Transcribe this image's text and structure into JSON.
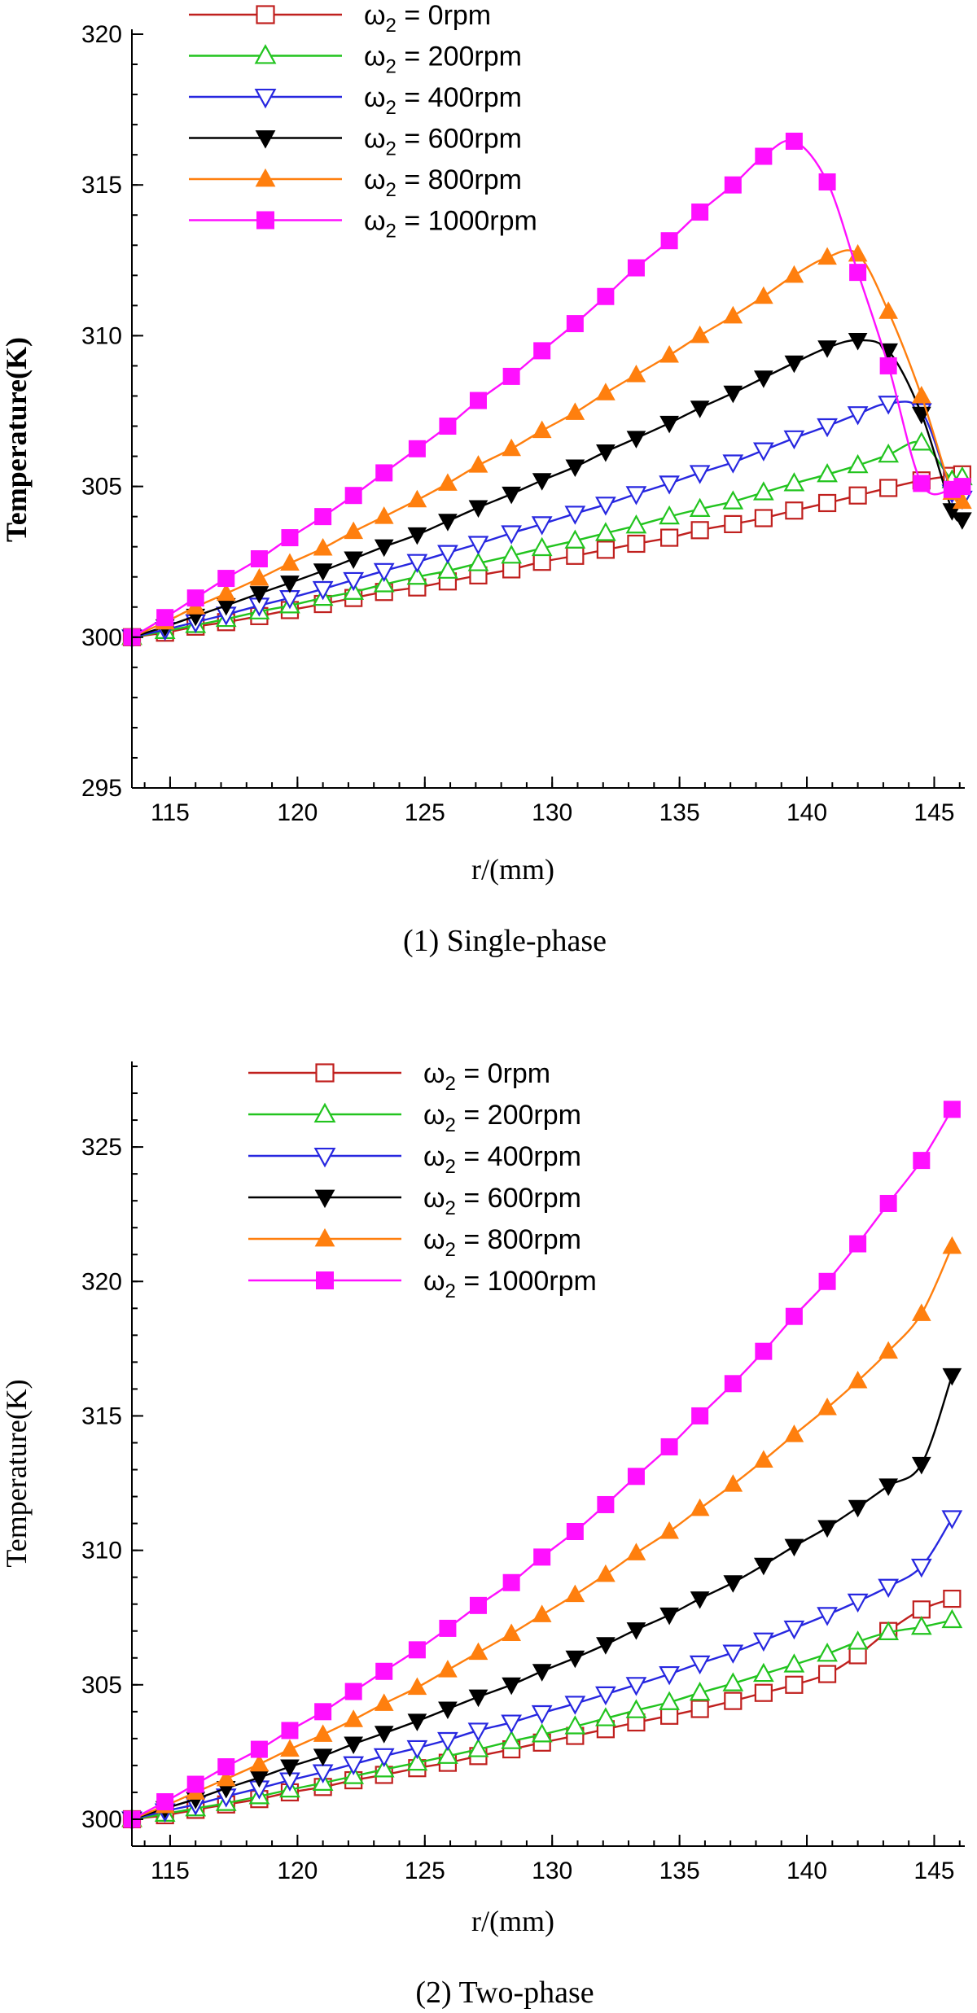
{
  "chart_data": [
    {
      "type": "line",
      "caption": "(1) Single-phase",
      "xlabel": "r/(mm)",
      "ylabel": "Temperature(K)",
      "xlim": [
        113.5,
        146.2
      ],
      "ylim": [
        295,
        320
      ],
      "xticks": [
        115,
        120,
        125,
        130,
        135,
        140,
        145
      ],
      "yticks": [
        295,
        300,
        305,
        310,
        315,
        320
      ],
      "grid": false,
      "legend_position": "top-left",
      "series": [
        {
          "name": "ω2 = 0rpm",
          "marker": "square-open",
          "color": "#c0201e",
          "x": [
            113.5,
            114.8,
            116.0,
            117.2,
            118.5,
            119.7,
            121.0,
            122.2,
            123.4,
            124.7,
            125.9,
            127.1,
            128.4,
            129.6,
            130.9,
            132.1,
            133.3,
            134.6,
            135.8,
            137.1,
            138.3,
            139.5,
            140.8,
            142.0,
            143.2,
            144.5,
            145.7,
            146.1
          ],
          "y": [
            300.0,
            300.15,
            300.35,
            300.5,
            300.7,
            300.9,
            301.1,
            301.3,
            301.5,
            301.65,
            301.85,
            302.05,
            302.25,
            302.5,
            302.7,
            302.9,
            303.1,
            303.3,
            303.55,
            303.75,
            303.95,
            304.2,
            304.45,
            304.7,
            304.95,
            305.2,
            305.35,
            305.4
          ]
        },
        {
          "name": "ω2 = 200rpm",
          "marker": "triangle-up-open",
          "color": "#22c41f",
          "x": [
            113.5,
            114.8,
            116.0,
            117.2,
            118.5,
            119.7,
            121.0,
            122.2,
            123.4,
            124.7,
            125.9,
            127.1,
            128.4,
            129.6,
            130.9,
            132.1,
            133.3,
            134.6,
            135.8,
            137.1,
            138.3,
            139.5,
            140.8,
            142.0,
            143.2,
            144.5,
            145.7,
            146.1
          ],
          "y": [
            300.0,
            300.2,
            300.4,
            300.6,
            300.85,
            301.05,
            301.3,
            301.5,
            301.75,
            302.0,
            302.2,
            302.45,
            302.7,
            302.95,
            303.2,
            303.45,
            303.7,
            304.0,
            304.25,
            304.5,
            304.8,
            305.1,
            305.4,
            305.7,
            306.05,
            306.45,
            305.2,
            305.3
          ]
        },
        {
          "name": "ω2 = 400rpm",
          "marker": "triangle-down-open",
          "color": "#2727e0",
          "x": [
            113.5,
            114.8,
            116.0,
            117.2,
            118.5,
            119.7,
            121.0,
            122.2,
            123.4,
            124.7,
            125.9,
            127.1,
            128.4,
            129.6,
            130.9,
            132.1,
            133.3,
            134.6,
            135.8,
            137.1,
            138.3,
            139.5,
            140.8,
            142.0,
            143.2,
            144.5,
            145.7,
            146.1
          ],
          "y": [
            300.0,
            300.25,
            300.5,
            300.75,
            301.05,
            301.3,
            301.6,
            301.9,
            302.2,
            302.5,
            302.8,
            303.1,
            303.45,
            303.75,
            304.1,
            304.4,
            304.75,
            305.1,
            305.45,
            305.8,
            306.2,
            306.6,
            307.0,
            307.4,
            307.75,
            307.5,
            304.8,
            304.6
          ]
        },
        {
          "name": "ω2 = 600rpm",
          "marker": "triangle-down-filled",
          "color": "#000000",
          "x": [
            113.5,
            114.8,
            116.0,
            117.2,
            118.5,
            119.7,
            121.0,
            122.2,
            123.4,
            124.7,
            125.9,
            127.1,
            128.4,
            129.6,
            130.9,
            132.1,
            133.3,
            134.6,
            135.8,
            137.1,
            138.3,
            139.5,
            140.8,
            142.0,
            143.2,
            144.5,
            145.7,
            146.1
          ],
          "y": [
            300.0,
            300.35,
            300.7,
            301.05,
            301.45,
            301.8,
            302.2,
            302.6,
            303.0,
            303.4,
            303.85,
            304.3,
            304.75,
            305.2,
            305.65,
            306.15,
            306.6,
            307.1,
            307.6,
            308.1,
            308.6,
            309.1,
            309.6,
            309.85,
            309.5,
            307.4,
            304.2,
            303.9
          ]
        },
        {
          "name": "ω2 = 800rpm",
          "marker": "triangle-up-filled",
          "color": "#ff7f0e",
          "x": [
            113.5,
            114.8,
            116.0,
            117.2,
            118.5,
            119.7,
            121.0,
            122.2,
            123.4,
            124.7,
            125.9,
            127.1,
            128.4,
            129.6,
            130.9,
            132.1,
            133.3,
            134.6,
            135.8,
            137.1,
            138.3,
            139.5,
            140.8,
            142.0,
            143.2,
            144.5,
            145.7,
            146.1
          ],
          "y": [
            300.0,
            300.5,
            301.0,
            301.45,
            301.95,
            302.45,
            302.95,
            303.5,
            304.0,
            304.55,
            305.1,
            305.7,
            306.25,
            306.85,
            307.45,
            308.1,
            308.7,
            309.35,
            310.0,
            310.65,
            311.3,
            312.0,
            312.6,
            312.7,
            310.8,
            308.0,
            304.8,
            304.5
          ]
        },
        {
          "name": "ω2 = 1000rpm",
          "marker": "square-filled",
          "color": "#ff10ff",
          "x": [
            113.5,
            114.8,
            116.0,
            117.2,
            118.5,
            119.7,
            121.0,
            122.2,
            123.4,
            124.7,
            125.9,
            127.1,
            128.4,
            129.6,
            130.9,
            132.1,
            133.3,
            134.6,
            135.8,
            137.1,
            138.3,
            139.5,
            140.8,
            142.0,
            143.2,
            144.5,
            145.7,
            146.1
          ],
          "y": [
            300.0,
            300.65,
            301.3,
            301.95,
            302.6,
            303.3,
            304.0,
            304.7,
            305.45,
            306.25,
            307.0,
            307.85,
            308.65,
            309.5,
            310.4,
            311.3,
            312.25,
            313.15,
            314.1,
            315.0,
            315.95,
            316.45,
            315.1,
            312.1,
            309.0,
            305.1,
            304.9,
            305.0
          ]
        }
      ]
    },
    {
      "type": "line",
      "caption": "(2) Two-phase",
      "xlabel": "r/(mm)",
      "ylabel": "Temperature(K)",
      "xlim": [
        113.5,
        146.2
      ],
      "ylim": [
        299.0,
        328.0
      ],
      "xticks": [
        115,
        120,
        125,
        130,
        135,
        140,
        145
      ],
      "yticks": [
        300,
        305,
        310,
        315,
        320,
        325
      ],
      "grid": false,
      "legend_position": "top-left",
      "series": [
        {
          "name": "ω2 = 0rpm",
          "marker": "square-open",
          "color": "#c0201e",
          "x": [
            113.5,
            114.8,
            116.0,
            117.2,
            118.5,
            119.7,
            121.0,
            122.2,
            123.4,
            124.7,
            125.9,
            127.1,
            128.4,
            129.6,
            130.9,
            132.1,
            133.3,
            134.6,
            135.8,
            137.1,
            138.3,
            139.5,
            140.8,
            142.0,
            143.2,
            144.5,
            145.7
          ],
          "y": [
            300.0,
            300.15,
            300.35,
            300.55,
            300.75,
            301.0,
            301.2,
            301.45,
            301.65,
            301.9,
            302.1,
            302.35,
            302.6,
            302.85,
            303.1,
            303.35,
            303.6,
            303.85,
            304.1,
            304.4,
            304.7,
            305.0,
            305.4,
            306.1,
            307.0,
            307.8,
            308.2
          ]
        },
        {
          "name": "ω2 = 200rpm",
          "marker": "triangle-up-open",
          "color": "#22c41f",
          "x": [
            113.5,
            114.8,
            116.0,
            117.2,
            118.5,
            119.7,
            121.0,
            122.2,
            123.4,
            124.7,
            125.9,
            127.1,
            128.4,
            129.6,
            130.9,
            132.1,
            133.3,
            134.6,
            135.8,
            137.1,
            138.3,
            139.5,
            140.8,
            142.0,
            143.2,
            144.5,
            145.7
          ],
          "y": [
            300.0,
            300.2,
            300.4,
            300.6,
            300.85,
            301.1,
            301.35,
            301.6,
            301.85,
            302.1,
            302.35,
            302.6,
            302.9,
            303.15,
            303.45,
            303.75,
            304.05,
            304.35,
            304.7,
            305.05,
            305.4,
            305.75,
            306.15,
            306.6,
            306.95,
            307.15,
            307.4
          ]
        },
        {
          "name": "ω2 = 400rpm",
          "marker": "triangle-down-open",
          "color": "#2727e0",
          "x": [
            113.5,
            114.8,
            116.0,
            117.2,
            118.5,
            119.7,
            121.0,
            122.2,
            123.4,
            124.7,
            125.9,
            127.1,
            128.4,
            129.6,
            130.9,
            132.1,
            133.3,
            134.6,
            135.8,
            137.1,
            138.3,
            139.5,
            140.8,
            142.0,
            143.2,
            144.5,
            145.7
          ],
          "y": [
            300.0,
            300.3,
            300.55,
            300.85,
            301.15,
            301.45,
            301.75,
            302.05,
            302.35,
            302.65,
            302.95,
            303.3,
            303.6,
            303.95,
            304.3,
            304.65,
            305.0,
            305.4,
            305.8,
            306.2,
            306.65,
            307.1,
            307.6,
            308.1,
            308.65,
            309.4,
            311.2
          ]
        },
        {
          "name": "ω2 = 600rpm",
          "marker": "triangle-down-filled",
          "color": "#000000",
          "x": [
            113.5,
            114.8,
            116.0,
            117.2,
            118.5,
            119.7,
            121.0,
            122.2,
            123.4,
            124.7,
            125.9,
            127.1,
            128.4,
            129.6,
            130.9,
            132.1,
            133.3,
            134.6,
            135.8,
            137.1,
            138.3,
            139.5,
            140.8,
            142.0,
            143.2,
            144.5,
            145.7
          ],
          "y": [
            300.0,
            300.4,
            300.75,
            301.15,
            301.55,
            301.95,
            302.35,
            302.8,
            303.2,
            303.65,
            304.1,
            304.55,
            305.0,
            305.5,
            306.0,
            306.5,
            307.05,
            307.6,
            308.2,
            308.8,
            309.45,
            310.15,
            310.85,
            311.6,
            312.4,
            313.2,
            316.5
          ]
        },
        {
          "name": "ω2 = 800rpm",
          "marker": "triangle-up-filled",
          "color": "#ff7f0e",
          "x": [
            113.5,
            114.8,
            116.0,
            117.2,
            118.5,
            119.7,
            121.0,
            122.2,
            123.4,
            124.7,
            125.9,
            127.1,
            128.4,
            129.6,
            130.9,
            132.1,
            133.3,
            134.6,
            135.8,
            137.1,
            138.3,
            139.5,
            140.8,
            142.0,
            143.2,
            144.5,
            145.7
          ],
          "y": [
            300.0,
            300.5,
            301.0,
            301.5,
            302.05,
            302.6,
            303.15,
            303.7,
            304.3,
            304.9,
            305.55,
            306.2,
            306.9,
            307.6,
            308.35,
            309.1,
            309.9,
            310.7,
            311.55,
            312.45,
            313.35,
            314.3,
            315.3,
            316.3,
            317.4,
            318.8,
            321.3
          ]
        },
        {
          "name": "ω2 = 1000rpm",
          "marker": "square-filled",
          "color": "#ff10ff",
          "x": [
            113.5,
            114.8,
            116.0,
            117.2,
            118.5,
            119.7,
            121.0,
            122.2,
            123.4,
            124.7,
            125.9,
            127.1,
            128.4,
            129.6,
            130.9,
            132.1,
            133.3,
            134.6,
            135.8,
            137.1,
            138.3,
            139.5,
            140.8,
            142.0,
            143.2,
            144.5,
            145.7
          ],
          "y": [
            300.0,
            300.65,
            301.3,
            301.95,
            302.6,
            303.3,
            304.0,
            304.75,
            305.5,
            306.3,
            307.1,
            307.95,
            308.8,
            309.75,
            310.7,
            311.7,
            312.75,
            313.85,
            315.0,
            316.2,
            317.4,
            318.7,
            320.0,
            321.4,
            322.9,
            324.5,
            326.4
          ]
        }
      ]
    }
  ]
}
